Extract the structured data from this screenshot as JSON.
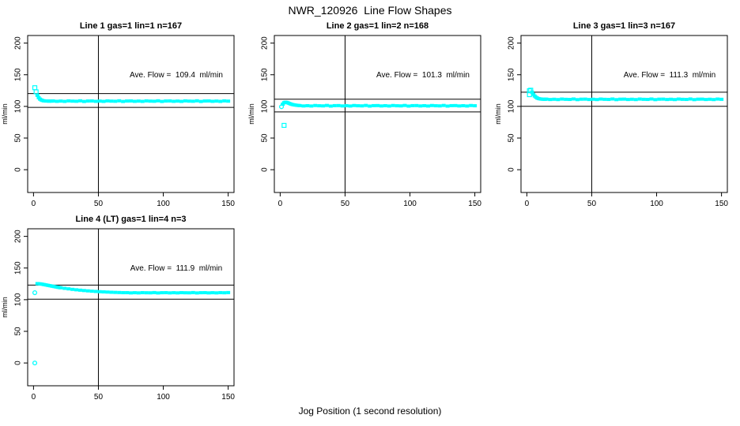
{
  "page": {
    "main_title": "NWR_120926  Line Flow Shapes",
    "x_axis_label": "Jog Position (1 second resolution)"
  },
  "colors": {
    "marker": "#00FFFF",
    "axis": "#000000",
    "background": "#FFFFFF"
  },
  "chart_data": [
    {
      "type": "scatter",
      "title": "Line 1 gas=1 lin=1 n=167",
      "line": 1,
      "gas": 1,
      "lin": 1,
      "n": 167,
      "ave_flow": 109.4,
      "ave_flow_label": "Ave. Flow =  109.4  ml/min",
      "ylabel": "ml/min",
      "xticks": [
        0,
        50,
        100,
        150
      ],
      "yticks": [
        0,
        50,
        100,
        150,
        200
      ],
      "xlim": [
        -4.5,
        154.5
      ],
      "ylim": [
        -36,
        212
      ],
      "ref_line_upper": 120.3,
      "ref_line_lower": 98.5,
      "vline_x": 50,
      "grid": false,
      "points_open": [
        [
          1,
          129.5
        ],
        [
          2,
          123
        ]
      ],
      "points_circle": [],
      "points": [
        [
          3,
          117.5
        ],
        [
          4,
          113.8
        ],
        [
          5,
          111.5
        ],
        [
          6,
          110.2
        ],
        [
          7,
          109.3
        ],
        [
          8,
          108.8
        ],
        [
          9,
          108.6
        ],
        [
          10,
          108.4
        ],
        [
          11,
          108.6
        ],
        [
          12,
          108.2
        ],
        [
          13,
          108.5
        ],
        [
          14,
          108.3
        ],
        [
          15,
          108.6
        ],
        [
          18,
          108.0
        ],
        [
          21,
          108.4
        ],
        [
          24,
          107.9
        ],
        [
          27,
          108.7
        ],
        [
          30,
          108.3
        ],
        [
          33,
          108.1
        ],
        [
          36,
          108.8
        ],
        [
          39,
          107.8
        ],
        [
          42,
          108.5
        ],
        [
          45,
          108.6
        ],
        [
          48,
          108.0
        ],
        [
          51,
          108.4
        ],
        [
          54,
          107.9
        ],
        [
          57,
          108.7
        ],
        [
          60,
          108.3
        ],
        [
          63,
          108.1
        ],
        [
          66,
          108.8
        ],
        [
          69,
          107.8
        ],
        [
          72,
          108.5
        ],
        [
          75,
          108.6
        ],
        [
          78,
          108.0
        ],
        [
          81,
          108.4
        ],
        [
          84,
          107.9
        ],
        [
          87,
          108.7
        ],
        [
          90,
          108.3
        ],
        [
          93,
          108.1
        ],
        [
          96,
          108.8
        ],
        [
          99,
          107.8
        ],
        [
          102,
          108.5
        ],
        [
          105,
          108.6
        ],
        [
          108,
          108.0
        ],
        [
          111,
          108.4
        ],
        [
          114,
          107.9
        ],
        [
          117,
          108.7
        ],
        [
          120,
          108.3
        ],
        [
          123,
          108.1
        ],
        [
          126,
          108.8
        ],
        [
          129,
          107.8
        ],
        [
          132,
          108.5
        ],
        [
          135,
          108.6
        ],
        [
          138,
          108.0
        ],
        [
          141,
          108.4
        ],
        [
          144,
          107.9
        ],
        [
          147,
          108.7
        ],
        [
          150,
          108.3
        ]
      ]
    },
    {
      "type": "scatter",
      "title": "Line 2 gas=1 lin=2 n=168",
      "line": 2,
      "gas": 1,
      "lin": 2,
      "n": 168,
      "ave_flow": 101.3,
      "ave_flow_label": "Ave. Flow =  101.3  ml/min",
      "ylabel": "ml/min",
      "xticks": [
        0,
        50,
        100,
        150
      ],
      "yticks": [
        0,
        50,
        100,
        150,
        200
      ],
      "xlim": [
        -4.5,
        154.5
      ],
      "ylim": [
        -36,
        212
      ],
      "ref_line_upper": 111.4,
      "ref_line_lower": 91.2,
      "vline_x": 50,
      "grid": false,
      "points_open": [
        [
          3,
          70
        ]
      ],
      "points_circle": [
        [
          1,
          99.5
        ]
      ],
      "points": [
        [
          2,
          103.5
        ],
        [
          3,
          105.8
        ],
        [
          4,
          106.6
        ],
        [
          5,
          106.3
        ],
        [
          6,
          105.6
        ],
        [
          7,
          104.7
        ],
        [
          8,
          103.9
        ],
        [
          9,
          103.2
        ],
        [
          10,
          102.7
        ],
        [
          11,
          102.3
        ],
        [
          12,
          102.0
        ],
        [
          13,
          101.7
        ],
        [
          14,
          101.5
        ],
        [
          15,
          101.3
        ],
        [
          18,
          100.7
        ],
        [
          21,
          101.1
        ],
        [
          24,
          100.6
        ],
        [
          27,
          101.4
        ],
        [
          30,
          101.0
        ],
        [
          33,
          100.8
        ],
        [
          36,
          101.5
        ],
        [
          39,
          100.5
        ],
        [
          42,
          101.2
        ],
        [
          45,
          101.3
        ],
        [
          48,
          100.7
        ],
        [
          51,
          101.1
        ],
        [
          54,
          100.6
        ],
        [
          57,
          101.4
        ],
        [
          60,
          101.0
        ],
        [
          63,
          100.8
        ],
        [
          66,
          101.5
        ],
        [
          69,
          100.5
        ],
        [
          72,
          101.2
        ],
        [
          75,
          101.3
        ],
        [
          78,
          100.7
        ],
        [
          81,
          101.1
        ],
        [
          84,
          100.6
        ],
        [
          87,
          101.4
        ],
        [
          90,
          101.0
        ],
        [
          93,
          100.8
        ],
        [
          96,
          101.5
        ],
        [
          99,
          100.5
        ],
        [
          102,
          101.2
        ],
        [
          105,
          101.3
        ],
        [
          108,
          100.7
        ],
        [
          111,
          101.1
        ],
        [
          114,
          100.6
        ],
        [
          117,
          101.4
        ],
        [
          120,
          101.0
        ],
        [
          123,
          100.8
        ],
        [
          126,
          101.5
        ],
        [
          129,
          100.5
        ],
        [
          132,
          101.2
        ],
        [
          135,
          101.3
        ],
        [
          138,
          100.7
        ],
        [
          141,
          101.1
        ],
        [
          144,
          100.6
        ],
        [
          147,
          101.4
        ],
        [
          150,
          101.0
        ]
      ]
    },
    {
      "type": "scatter",
      "title": "Line 3 gas=1 lin=3 n=167",
      "line": 3,
      "gas": 1,
      "lin": 3,
      "n": 167,
      "ave_flow": 111.3,
      "ave_flow_label": "Ave. Flow =  111.3  ml/min",
      "ylabel": "ml/min",
      "xticks": [
        0,
        50,
        100,
        150
      ],
      "yticks": [
        0,
        50,
        100,
        150,
        200
      ],
      "xlim": [
        -4.5,
        154.5
      ],
      "ylim": [
        -36,
        212
      ],
      "ref_line_upper": 122.4,
      "ref_line_lower": 100.2,
      "vline_x": 50,
      "grid": false,
      "points_open": [
        [
          2,
          118.5
        ],
        [
          2,
          124.8
        ],
        [
          3,
          125.6
        ]
      ],
      "points_circle": [],
      "points": [
        [
          4,
          122.5
        ],
        [
          5,
          119.0
        ],
        [
          6,
          116.4
        ],
        [
          7,
          114.5
        ],
        [
          8,
          113.2
        ],
        [
          9,
          112.4
        ],
        [
          10,
          111.9
        ],
        [
          11,
          111.6
        ],
        [
          12,
          111.4
        ],
        [
          13,
          111.3
        ],
        [
          14,
          111.2
        ],
        [
          15,
          111.5
        ],
        [
          18,
          110.9
        ],
        [
          21,
          111.3
        ],
        [
          24,
          110.8
        ],
        [
          27,
          111.6
        ],
        [
          30,
          111.2
        ],
        [
          33,
          111.0
        ],
        [
          36,
          111.7
        ],
        [
          39,
          110.7
        ],
        [
          42,
          111.4
        ],
        [
          45,
          111.5
        ],
        [
          48,
          110.9
        ],
        [
          51,
          111.3
        ],
        [
          54,
          110.8
        ],
        [
          57,
          111.6
        ],
        [
          60,
          111.2
        ],
        [
          63,
          111.0
        ],
        [
          66,
          111.7
        ],
        [
          69,
          110.7
        ],
        [
          72,
          111.4
        ],
        [
          75,
          111.5
        ],
        [
          78,
          110.9
        ],
        [
          81,
          111.3
        ],
        [
          84,
          110.8
        ],
        [
          87,
          111.6
        ],
        [
          90,
          111.2
        ],
        [
          93,
          111.0
        ],
        [
          96,
          111.7
        ],
        [
          99,
          110.7
        ],
        [
          102,
          111.4
        ],
        [
          105,
          111.5
        ],
        [
          108,
          110.9
        ],
        [
          111,
          111.3
        ],
        [
          114,
          110.8
        ],
        [
          117,
          111.6
        ],
        [
          120,
          111.2
        ],
        [
          123,
          111.0
        ],
        [
          126,
          111.7
        ],
        [
          129,
          110.7
        ],
        [
          132,
          111.4
        ],
        [
          135,
          111.5
        ],
        [
          138,
          110.9
        ],
        [
          141,
          111.3
        ],
        [
          144,
          110.8
        ],
        [
          147,
          111.6
        ],
        [
          150,
          111.2
        ]
      ]
    },
    {
      "type": "scatter",
      "title": "Line 4 (LT) gas=1 lin=4 n=3",
      "line": 4,
      "gas": 1,
      "lin": 4,
      "n": 3,
      "ave_flow": 111.9,
      "ave_flow_label": "Ave. Flow =  111.9  ml/min",
      "ylabel": "ml/min",
      "xticks": [
        0,
        50,
        100,
        150
      ],
      "yticks": [
        0,
        50,
        100,
        150,
        200
      ],
      "xlim": [
        -4.5,
        154.5
      ],
      "ylim": [
        -36,
        212
      ],
      "ref_line_upper": 123.1,
      "ref_line_lower": 100.7,
      "vline_x": 50,
      "grid": false,
      "points_open": [],
      "points_circle": [
        [
          1,
          111
        ],
        [
          1,
          0
        ]
      ],
      "points": [
        [
          3,
          125.4
        ],
        [
          4,
          125.2
        ],
        [
          5,
          125.0
        ],
        [
          6,
          124.7
        ],
        [
          7,
          124.3
        ],
        [
          8,
          123.9
        ],
        [
          9,
          123.5
        ],
        [
          10,
          123.1
        ],
        [
          11,
          122.7
        ],
        [
          12,
          122.3
        ],
        [
          13,
          121.9
        ],
        [
          14,
          121.5
        ],
        [
          15,
          121.1
        ],
        [
          16,
          120.7
        ],
        [
          17,
          120.3
        ],
        [
          18,
          119.9
        ],
        [
          19,
          119.5
        ],
        [
          20,
          119.1
        ],
        [
          21,
          118.8
        ],
        [
          24,
          117.9
        ],
        [
          27,
          117.1
        ],
        [
          30,
          116.3
        ],
        [
          33,
          115.6
        ],
        [
          36,
          115.0
        ],
        [
          39,
          114.4
        ],
        [
          42,
          113.9
        ],
        [
          45,
          113.4
        ],
        [
          48,
          113.0
        ],
        [
          51,
          112.6
        ],
        [
          54,
          112.3
        ],
        [
          57,
          112.0
        ],
        [
          60,
          111.7
        ],
        [
          63,
          111.5
        ],
        [
          66,
          111.3
        ],
        [
          69,
          111.1
        ],
        [
          72,
          111.1
        ],
        [
          75,
          110.7
        ],
        [
          78,
          111.0
        ],
        [
          81,
          110.7
        ],
        [
          84,
          111.1
        ],
        [
          87,
          110.9
        ],
        [
          90,
          110.8
        ],
        [
          93,
          111.2
        ],
        [
          96,
          110.6
        ],
        [
          99,
          111.0
        ],
        [
          102,
          111.1
        ],
        [
          105,
          110.7
        ],
        [
          108,
          111.0
        ],
        [
          111,
          110.7
        ],
        [
          114,
          111.1
        ],
        [
          117,
          110.9
        ],
        [
          120,
          110.8
        ],
        [
          123,
          111.2
        ],
        [
          126,
          110.6
        ],
        [
          129,
          111.0
        ],
        [
          132,
          111.1
        ],
        [
          135,
          110.7
        ],
        [
          138,
          111.0
        ],
        [
          141,
          110.7
        ],
        [
          144,
          111.1
        ],
        [
          147,
          110.9
        ],
        [
          150,
          111.2
        ]
      ]
    }
  ]
}
